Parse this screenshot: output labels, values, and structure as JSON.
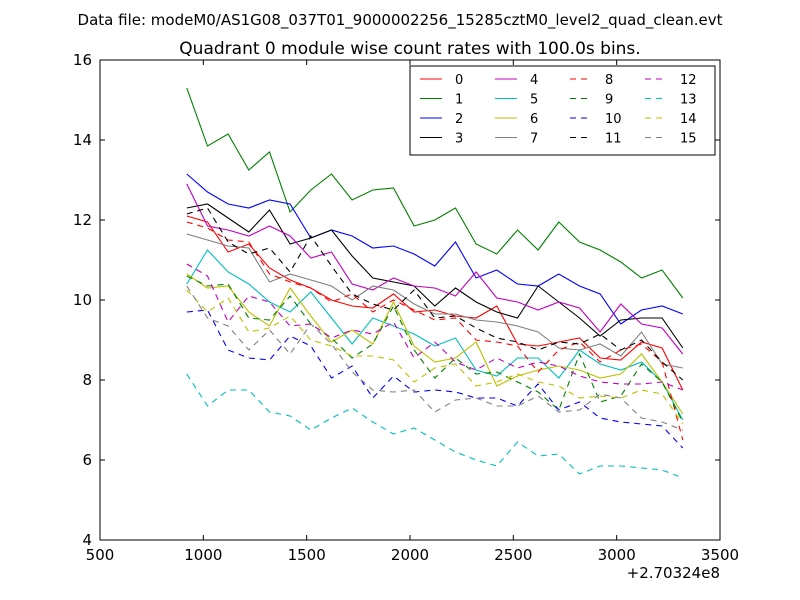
{
  "chart_data": {
    "type": "line",
    "suptitle": "Data file: modeM0/AS1G08_037T01_9000002256_15285cztM0_level2_quad_clean.evt",
    "title": "Quadrant 0 module wise count rates with 100.0s bins.",
    "xlabel": "",
    "ylabel": "",
    "x_offset_label": "+2.70324e8",
    "xlim": [
      500,
      3500
    ],
    "ylim": [
      4,
      16
    ],
    "x_ticks": [
      500,
      1000,
      1500,
      2000,
      2500,
      3000,
      3500
    ],
    "y_ticks": [
      4,
      6,
      8,
      10,
      12,
      14,
      16
    ],
    "grid": false,
    "legend_position": "top-right",
    "legend_columns": 4,
    "x": [
      920,
      1020,
      1120,
      1220,
      1320,
      1420,
      1520,
      1620,
      1720,
      1820,
      1920,
      2020,
      2120,
      2220,
      2320,
      2420,
      2520,
      2620,
      2720,
      2820,
      2920,
      3020,
      3120,
      3220,
      3320
    ],
    "series": [
      {
        "name": "0",
        "color": "#ff0000",
        "dash": "solid",
        "values": [
          12.1,
          11.95,
          11.2,
          11.4,
          10.8,
          10.5,
          10.3,
          10.0,
          9.85,
          9.8,
          10.15,
          9.7,
          9.75,
          9.6,
          9.55,
          9.85,
          8.9,
          8.85,
          8.95,
          9.05,
          8.55,
          8.5,
          8.95,
          8.8,
          7.75
        ]
      },
      {
        "name": "1",
        "color": "#008000",
        "dash": "solid",
        "values": [
          15.3,
          13.85,
          14.15,
          13.25,
          13.7,
          12.2,
          12.75,
          13.15,
          12.5,
          12.75,
          12.8,
          11.85,
          12.0,
          12.3,
          11.4,
          11.15,
          11.75,
          11.25,
          11.95,
          11.45,
          11.25,
          10.95,
          10.55,
          10.75,
          10.05
        ]
      },
      {
        "name": "2",
        "color": "#0000ff",
        "dash": "solid",
        "values": [
          13.15,
          12.7,
          12.4,
          12.3,
          12.5,
          12.4,
          11.55,
          11.75,
          11.6,
          11.3,
          11.35,
          11.15,
          10.85,
          11.45,
          10.55,
          10.75,
          10.4,
          10.35,
          10.65,
          10.35,
          10.15,
          9.4,
          9.75,
          9.85,
          9.65
        ]
      },
      {
        "name": "3",
        "color": "#000000",
        "dash": "solid",
        "values": [
          12.3,
          12.4,
          12.05,
          11.7,
          12.25,
          11.4,
          11.55,
          11.75,
          11.1,
          10.55,
          10.45,
          10.35,
          9.85,
          10.3,
          9.95,
          9.7,
          9.55,
          10.35,
          9.95,
          9.55,
          9.1,
          9.5,
          9.55,
          9.55,
          8.8
        ]
      },
      {
        "name": "4",
        "color": "#bf00bf",
        "dash": "solid",
        "values": [
          12.9,
          11.85,
          11.75,
          11.6,
          11.85,
          11.6,
          11.05,
          11.2,
          10.4,
          10.25,
          10.55,
          10.35,
          10.3,
          10.1,
          10.7,
          10.05,
          9.95,
          9.75,
          9.95,
          9.8,
          9.2,
          9.9,
          9.4,
          9.3,
          8.65
        ]
      },
      {
        "name": "5",
        "color": "#00bfbf",
        "dash": "solid",
        "values": [
          10.4,
          11.25,
          10.7,
          10.4,
          9.95,
          9.7,
          10.2,
          9.55,
          8.9,
          9.55,
          9.35,
          9.15,
          8.85,
          9.05,
          8.25,
          8.1,
          8.55,
          8.55,
          8.05,
          8.75,
          8.4,
          8.25,
          8.45,
          7.95,
          7.0
        ]
      },
      {
        "name": "6",
        "color": "#bfbf00",
        "dash": "solid",
        "values": [
          10.65,
          10.3,
          10.35,
          9.7,
          9.35,
          10.3,
          9.6,
          8.95,
          9.25,
          8.9,
          9.95,
          8.85,
          8.45,
          8.55,
          8.95,
          7.85,
          8.1,
          8.25,
          8.35,
          8.25,
          8.05,
          8.15,
          8.65,
          7.95,
          7.15
        ]
      },
      {
        "name": "7",
        "color": "#808080",
        "dash": "solid",
        "values": [
          11.65,
          11.5,
          11.35,
          11.3,
          10.45,
          10.65,
          10.5,
          10.35,
          10.0,
          10.35,
          10.25,
          9.9,
          9.65,
          9.65,
          9.5,
          9.45,
          9.35,
          9.2,
          8.8,
          8.75,
          8.9,
          8.6,
          9.2,
          8.4,
          8.3
        ]
      },
      {
        "name": "8",
        "color": "#ff0000",
        "dash": "dashed",
        "values": [
          11.95,
          11.8,
          11.5,
          11.45,
          10.65,
          10.45,
          10.3,
          9.95,
          10.15,
          9.7,
          10.0,
          9.75,
          9.5,
          9.55,
          9.0,
          8.95,
          8.85,
          8.2,
          8.75,
          8.95,
          8.45,
          8.75,
          8.9,
          8.45,
          6.5
        ]
      },
      {
        "name": "9",
        "color": "#008000",
        "dash": "dashed",
        "values": [
          10.6,
          10.35,
          10.4,
          9.55,
          9.5,
          10.1,
          9.4,
          9.05,
          8.55,
          8.9,
          9.85,
          8.75,
          8.05,
          8.55,
          8.15,
          8.2,
          7.95,
          7.7,
          7.25,
          8.65,
          7.45,
          7.6,
          8.4,
          7.95,
          6.95
        ]
      },
      {
        "name": "10",
        "color": "#0000ff",
        "dash": "dashed",
        "values": [
          9.7,
          9.75,
          8.75,
          8.55,
          8.5,
          9.1,
          8.85,
          8.05,
          8.35,
          7.55,
          8.1,
          7.7,
          7.75,
          7.7,
          7.55,
          7.55,
          7.35,
          7.9,
          7.25,
          7.45,
          7.05,
          6.95,
          6.9,
          6.85,
          6.3
        ]
      },
      {
        "name": "11",
        "color": "#000000",
        "dash": "dashed",
        "values": [
          12.15,
          12.3,
          11.45,
          11.15,
          11.3,
          10.7,
          11.6,
          10.85,
          10.15,
          9.9,
          9.75,
          10.25,
          9.55,
          9.6,
          9.3,
          9.05,
          8.95,
          8.75,
          8.95,
          8.9,
          9.15,
          8.75,
          9.0,
          8.45,
          8.0
        ]
      },
      {
        "name": "12",
        "color": "#bf00bf",
        "dash": "dashed",
        "values": [
          10.9,
          10.6,
          9.45,
          10.1,
          9.95,
          9.35,
          9.4,
          9.05,
          9.25,
          9.15,
          9.45,
          8.55,
          8.95,
          8.45,
          8.25,
          8.55,
          8.3,
          8.45,
          8.35,
          8.1,
          7.95,
          7.9,
          7.9,
          7.95,
          7.75
        ]
      },
      {
        "name": "13",
        "color": "#00bfbf",
        "dash": "dashed",
        "values": [
          8.15,
          7.35,
          7.75,
          7.75,
          7.2,
          7.1,
          6.75,
          7.05,
          7.3,
          6.95,
          6.65,
          6.8,
          6.5,
          6.2,
          6.0,
          5.85,
          6.45,
          6.1,
          6.15,
          5.65,
          5.85,
          5.85,
          5.8,
          5.75,
          5.55
        ]
      },
      {
        "name": "14",
        "color": "#bfbf00",
        "dash": "dashed",
        "values": [
          10.25,
          9.7,
          10.05,
          9.2,
          9.3,
          9.6,
          9.0,
          8.85,
          8.6,
          8.6,
          8.5,
          7.95,
          8.3,
          8.4,
          7.85,
          7.95,
          8.15,
          7.95,
          7.85,
          7.55,
          7.6,
          7.55,
          7.75,
          7.65,
          6.9
        ]
      },
      {
        "name": "15",
        "color": "#808080",
        "dash": "dashed",
        "values": [
          10.35,
          9.55,
          9.35,
          8.75,
          9.25,
          8.65,
          9.4,
          8.9,
          8.2,
          7.75,
          7.7,
          7.75,
          7.2,
          7.5,
          7.55,
          7.35,
          7.35,
          7.6,
          7.2,
          7.25,
          7.65,
          7.55,
          7.05,
          6.95,
          6.75
        ]
      }
    ]
  }
}
